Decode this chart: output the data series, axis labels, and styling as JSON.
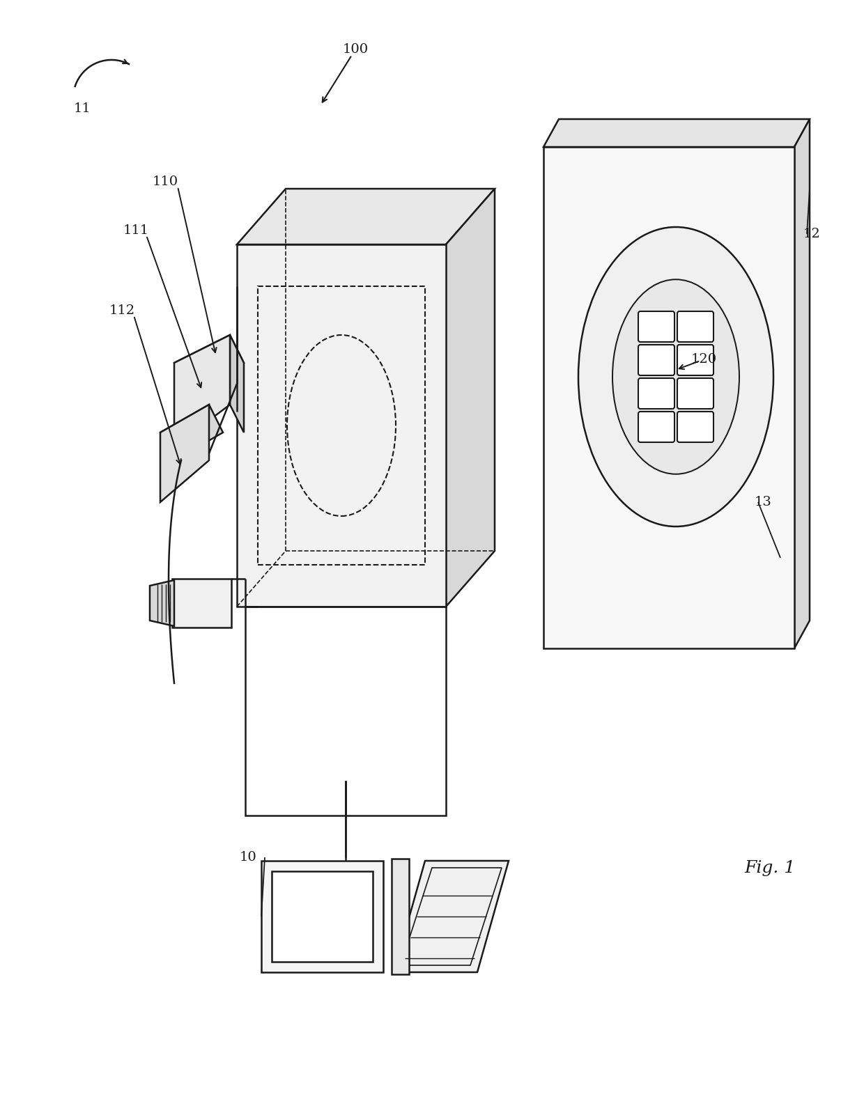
{
  "bg_color": "#ffffff",
  "lc": "#1a1a1a",
  "lw": 1.8,
  "fig_label": "Fig. 1",
  "label_100": "100",
  "label_110": "110",
  "label_111": "111",
  "label_112": "112",
  "label_12": "12",
  "label_13": "13",
  "label_120": "120",
  "label_10": "10",
  "label_11": "11"
}
